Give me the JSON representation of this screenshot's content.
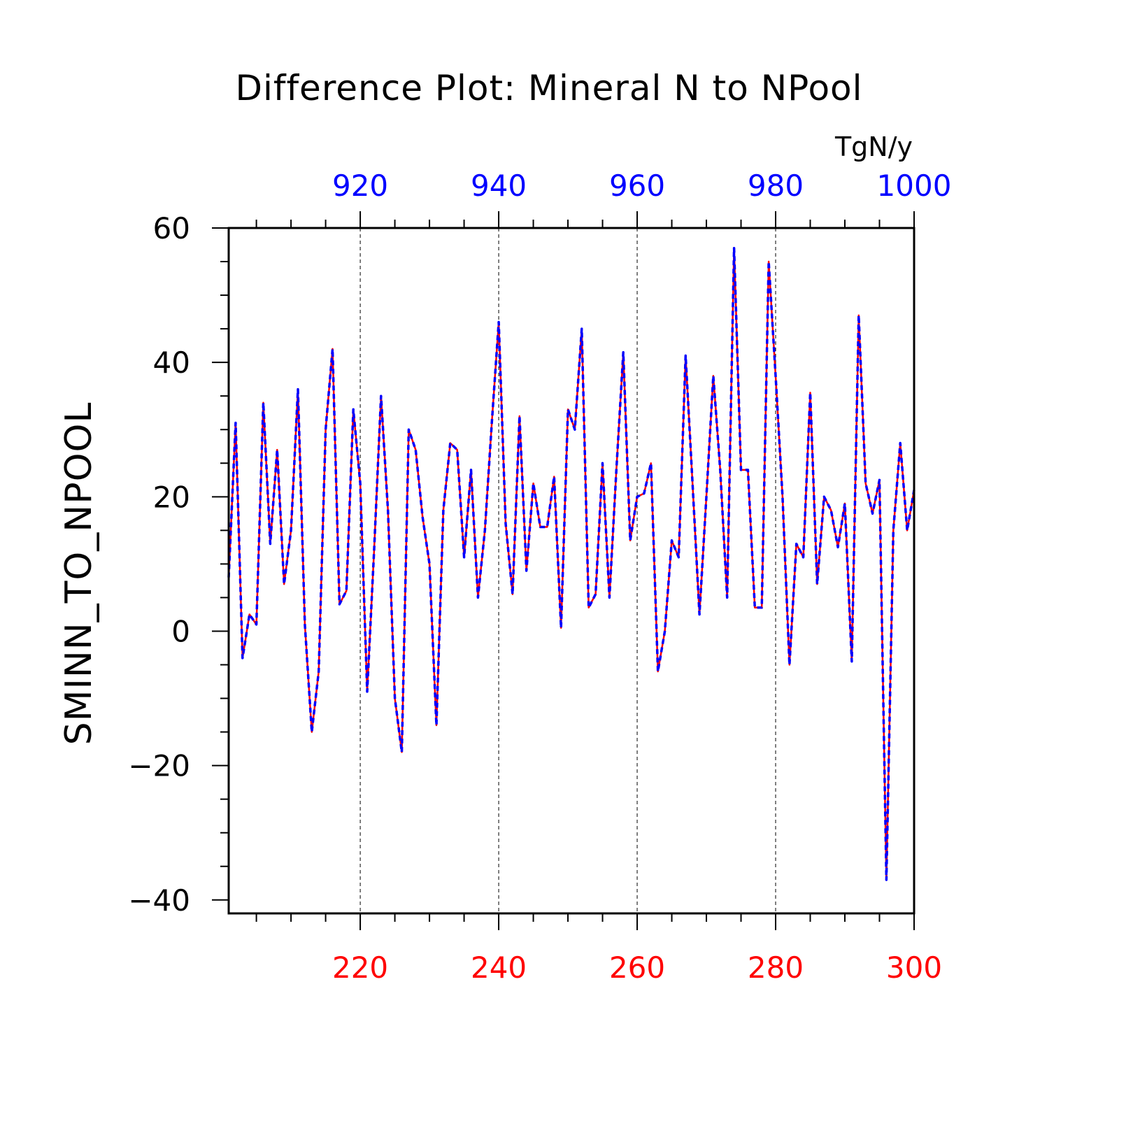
{
  "chart_data": {
    "type": "line",
    "title": "Difference Plot: Mineral N to NPool",
    "units": "TgN/y",
    "ylabel": "SMINN_TO_NPOOL",
    "xlabel": "",
    "ylim": [
      -42,
      60
    ],
    "y_ticks": [
      60,
      40,
      20,
      0,
      -20,
      -40
    ],
    "y_tick_labels": [
      "60",
      "40",
      "20",
      "0",
      "−20",
      "−40"
    ],
    "x_bottom": {
      "range": [
        201,
        300
      ],
      "ticks": [
        220,
        240,
        260,
        280,
        300
      ],
      "color": "#ff0000"
    },
    "x_top": {
      "range": [
        901,
        1000
      ],
      "ticks": [
        920,
        940,
        960,
        980,
        1000
      ],
      "color": "#0000ff"
    },
    "grid": "vertical dashed at major x ticks",
    "x": [
      201,
      202,
      203,
      204,
      205,
      206,
      207,
      208,
      209,
      210,
      211,
      212,
      213,
      214,
      215,
      216,
      217,
      218,
      219,
      220,
      221,
      222,
      223,
      224,
      225,
      226,
      227,
      228,
      229,
      230,
      231,
      232,
      233,
      234,
      235,
      236,
      237,
      238,
      239,
      240,
      241,
      242,
      243,
      244,
      245,
      246,
      247,
      248,
      249,
      250,
      251,
      252,
      253,
      254,
      255,
      256,
      257,
      258,
      259,
      260,
      261,
      262,
      263,
      264,
      265,
      266,
      267,
      268,
      269,
      270,
      271,
      272,
      273,
      274,
      275,
      276,
      277,
      278,
      279,
      280,
      281,
      282,
      283,
      284,
      285,
      286,
      287,
      288,
      289,
      290,
      291,
      292,
      293,
      294,
      295,
      296,
      297,
      298,
      299,
      300
    ],
    "series": [
      {
        "style": "solid",
        "color": "#ff0000",
        "values": [
          8,
          31,
          -4,
          2.5,
          1,
          34,
          13,
          27,
          7,
          15,
          36,
          1,
          -15,
          -6,
          30,
          42,
          4,
          6,
          33,
          22,
          -9,
          12,
          35,
          18,
          -10,
          -18,
          30,
          27,
          17,
          10,
          -14,
          18,
          28,
          27,
          11,
          24,
          5,
          15,
          31,
          46,
          16,
          5.5,
          32,
          9,
          22,
          15.5,
          15.5,
          23,
          0.5,
          33,
          30,
          45,
          3.5,
          5.5,
          25,
          5,
          24,
          41.5,
          13.5,
          20,
          20.5,
          25,
          -6,
          0,
          13.5,
          11,
          41,
          22,
          2.5,
          20,
          38,
          24,
          5,
          57,
          24,
          24,
          3.5,
          3.5,
          55,
          38,
          20,
          -5,
          13,
          11,
          35.5,
          7,
          20,
          18,
          12.5,
          19,
          -4.5,
          47,
          22,
          17.5,
          22.5,
          -37,
          15,
          28,
          15,
          21
        ]
      },
      {
        "style": "dashed",
        "color": "#0000ff",
        "values": [
          8,
          31,
          -4,
          2.5,
          1,
          34,
          13,
          27,
          7,
          15,
          36,
          1,
          -15,
          -6,
          30,
          42,
          4,
          6,
          33,
          22,
          -9,
          12,
          35,
          18,
          -10,
          -18,
          30,
          27,
          17,
          10,
          -14,
          18,
          28,
          27,
          11,
          24,
          5,
          15,
          31,
          46,
          16,
          5.5,
          32,
          9,
          22,
          15.5,
          15.5,
          23,
          0.5,
          33,
          30,
          45,
          3.5,
          5.5,
          25,
          5,
          24,
          41.5,
          13.5,
          20,
          20.5,
          25,
          -6,
          0,
          13.5,
          11,
          41,
          22,
          2.5,
          20,
          38,
          24,
          5,
          57,
          24,
          24,
          3.5,
          3.5,
          55,
          38,
          20,
          -5,
          13,
          11,
          35.5,
          7,
          20,
          18,
          12.5,
          19,
          -4.5,
          47,
          22,
          17.5,
          22.5,
          -37,
          15,
          28,
          15,
          21
        ]
      }
    ]
  }
}
